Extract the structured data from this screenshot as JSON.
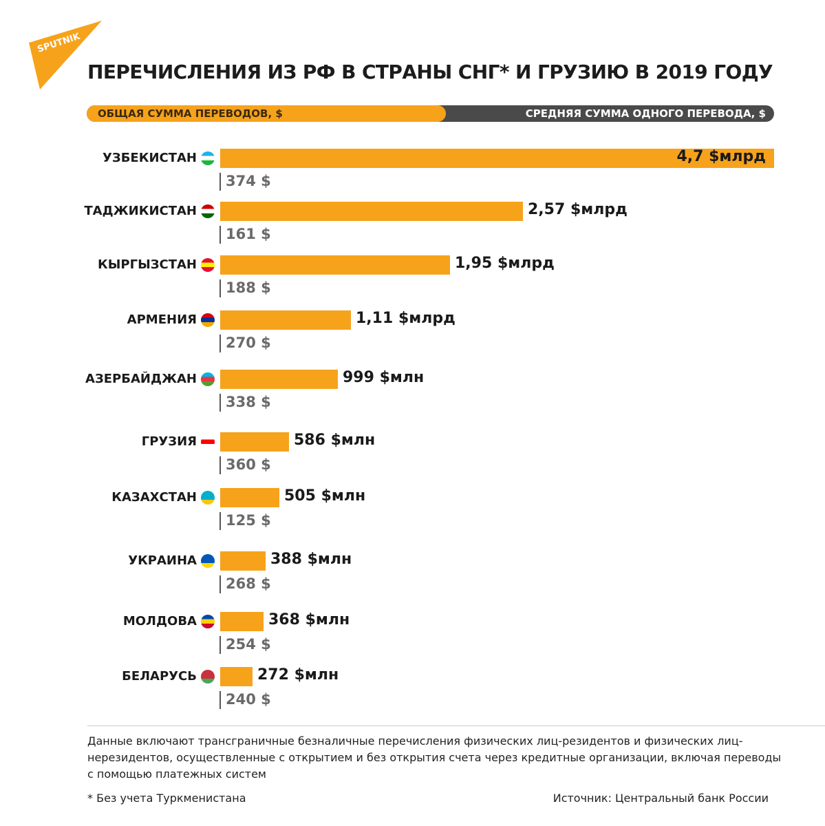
{
  "brand": {
    "logo_text": "SPUTNIK",
    "logo_color": "#f7a21b"
  },
  "title": "ПЕРЕЧИСЛЕНИЯ ИЗ РФ В СТРАНЫ СНГ* И ГРУЗИЮ В 2019 ГОДУ",
  "legend": {
    "total_label": "ОБЩАЯ СУММА ПЕРЕВОДОВ, $",
    "average_label": "СРЕДНЯЯ СУММА ОДНОГО ПЕРЕВОДА, $",
    "total_color": "#f7a21b",
    "average_color": "#4a4a4a"
  },
  "chart_data": {
    "type": "bar",
    "orientation": "horizontal",
    "title": "ПЕРЕЧИСЛЕНИЯ ИЗ РФ В СТРАНЫ СНГ* И ГРУЗИЮ В 2019 ГОДУ",
    "units": "USD",
    "categories": [
      "УЗБЕКИСТАН",
      "ТАДЖИКИСТАН",
      "КЫРГЫЗСТАН",
      "АРМЕНИЯ",
      "АЗЕРБАЙДЖАН",
      "ГРУЗИЯ",
      "КАЗАХСТАН",
      "УКРАИНА",
      "МОЛДОВА",
      "БЕЛАРУСЬ"
    ],
    "series": [
      {
        "name": "ОБЩАЯ СУММА ПЕРЕВОДОВ, $",
        "values_millions_usd": [
          4700,
          2570,
          1950,
          1110,
          999,
          586,
          505,
          388,
          368,
          272
        ],
        "labels": [
          "4,7 $млрд",
          "2,57 $млрд",
          "1,95 $млрд",
          "1,11 $млрд",
          "999 $млн",
          "586 $млн",
          "505 $млн",
          "388 $млн",
          "368 $млн",
          "272 $млн"
        ]
      },
      {
        "name": "СРЕДНЯЯ СУММА ОДНОГО ПЕРЕВОДА, $",
        "values_usd": [
          374,
          161,
          188,
          270,
          338,
          360,
          125,
          268,
          254,
          240
        ],
        "labels": [
          "374 $",
          "161 $",
          "188 $",
          "270 $",
          "338 $",
          "360 $",
          "125 $",
          "268 $",
          "254 $",
          "240 $"
        ]
      }
    ],
    "flags": [
      [
        "#1eb3e6",
        "#ffffff",
        "#1eb53a"
      ],
      [
        "#cc0000",
        "#ffffff",
        "#006600"
      ],
      [
        "#e8112d",
        "#ffef00",
        "#e8112d"
      ],
      [
        "#d90012",
        "#0033a0",
        "#f2a800"
      ],
      [
        "#00b5e2",
        "#ef3340",
        "#509e2f"
      ],
      [
        "#ffffff",
        "#ff0000",
        "#ffffff"
      ],
      [
        "#00afca",
        "#00afca",
        "#fec50c"
      ],
      [
        "#0057b7",
        "#0057b7",
        "#ffd700"
      ],
      [
        "#0046ae",
        "#ffd200",
        "#cc092f"
      ],
      [
        "#c8313e",
        "#c8313e",
        "#4aa657"
      ]
    ]
  },
  "note": "Данные включают трансграничные безналичные перечисления физических лиц-резидентов и физических лиц-нерезидентов, осуществленные с открытием и без открытия счета через кредитные организации, включая переводы с помощью платежных систем",
  "footnote": "* Без учета Туркменистана",
  "source": "Источник: Центральный банк России"
}
